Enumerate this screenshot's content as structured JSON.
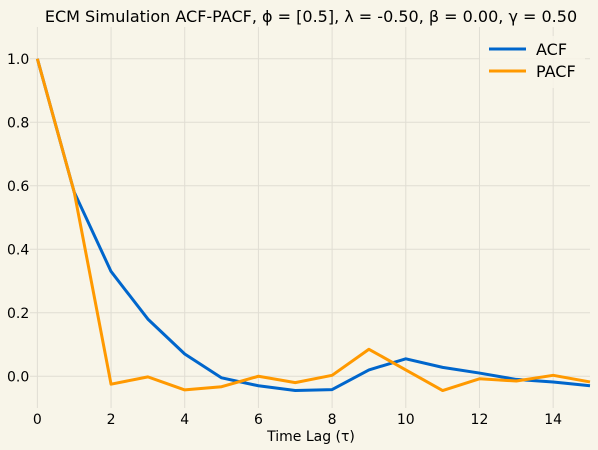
{
  "chart_data": {
    "type": "line",
    "title": "ECM Simulation ACF-PACF, ϕ = [0.5], λ = -0.50, β = 0.00, γ = 0.50",
    "xlabel": "Time Lag (τ)",
    "ylabel": "",
    "xlim": [
      -0.2,
      15
    ],
    "ylim": [
      -0.1,
      1.1
    ],
    "xticks": [
      0,
      2,
      4,
      6,
      8,
      10,
      12,
      14
    ],
    "yticks": [
      0.0,
      0.2,
      0.4,
      0.6,
      0.8,
      1.0
    ],
    "xtick_labels": [
      "0",
      "2",
      "4",
      "6",
      "8",
      "10",
      "12",
      "14"
    ],
    "ytick_labels": [
      "0.0",
      "0.2",
      "0.4",
      "0.6",
      "0.8",
      "1.0"
    ],
    "grid": true,
    "legend_position": "top-right",
    "x": [
      0,
      1,
      2,
      3,
      4,
      5,
      6,
      7,
      8,
      9,
      10,
      11,
      12,
      13,
      14,
      15
    ],
    "series": [
      {
        "name": "ACF",
        "color": "#0066cc",
        "values": [
          1.0,
          0.58,
          0.33,
          0.18,
          0.07,
          -0.005,
          -0.03,
          -0.045,
          -0.042,
          0.02,
          0.055,
          0.028,
          0.01,
          -0.01,
          -0.018,
          -0.03
        ]
      },
      {
        "name": "PACF",
        "color": "#ff9900",
        "values": [
          1.0,
          0.58,
          -0.025,
          -0.002,
          -0.043,
          -0.033,
          0.0,
          -0.02,
          0.003,
          0.085,
          0.02,
          -0.045,
          -0.008,
          -0.015,
          0.003,
          -0.018
        ]
      }
    ]
  }
}
